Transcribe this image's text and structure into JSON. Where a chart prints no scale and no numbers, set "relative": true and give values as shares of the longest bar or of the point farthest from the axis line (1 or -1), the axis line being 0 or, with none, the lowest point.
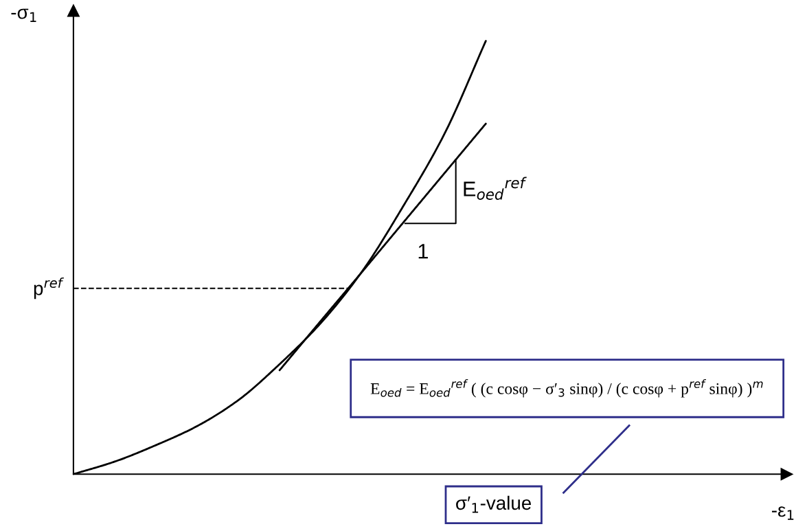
{
  "chart_data": {
    "type": "line",
    "relative": true,
    "ylabel": "-σ$_{1}$",
    "categories": [
      null,
      null,
      null,
      null,
      null,
      null,
      null,
      null,
      null,
      null,
      null
    ],
    "series": [
      {
        "color": "#000000",
        "values": [
          0,
          0.029,
          0.067,
          0.111,
          0.171,
          0.254,
          0.349,
          0.468,
          0.619,
          0.786,
          1.0
        ]
      },
      {
        "type": "line",
        "color": "#000000",
        "values": [
          null,
          null,
          null,
          null,
          null,
          0.24,
          0.354,
          0.467,
          0.581,
          0.695,
          0.809
        ]
      }
    ],
    "ref_lines": [
      {
        "axis": "y",
        "value": 0.429,
        "label": "p$^{ref}$",
        "line_style": "dashed",
        "color": "#000000"
      }
    ],
    "annotations": [
      "E$_{oed}$ = E$_{oed}$$^{ref}$ ( (c cosφ − σ′$_{3}$ sinφ) / (c cosφ + p$^{ref}$ sinφ) )$^{m}$",
      "σ′$_{1}$-value",
      "1",
      "E$_{oed}$$^{ref}$",
      "-ε$_{1}$"
    ],
    "marker": "none",
    "line_style": "solid"
  }
}
